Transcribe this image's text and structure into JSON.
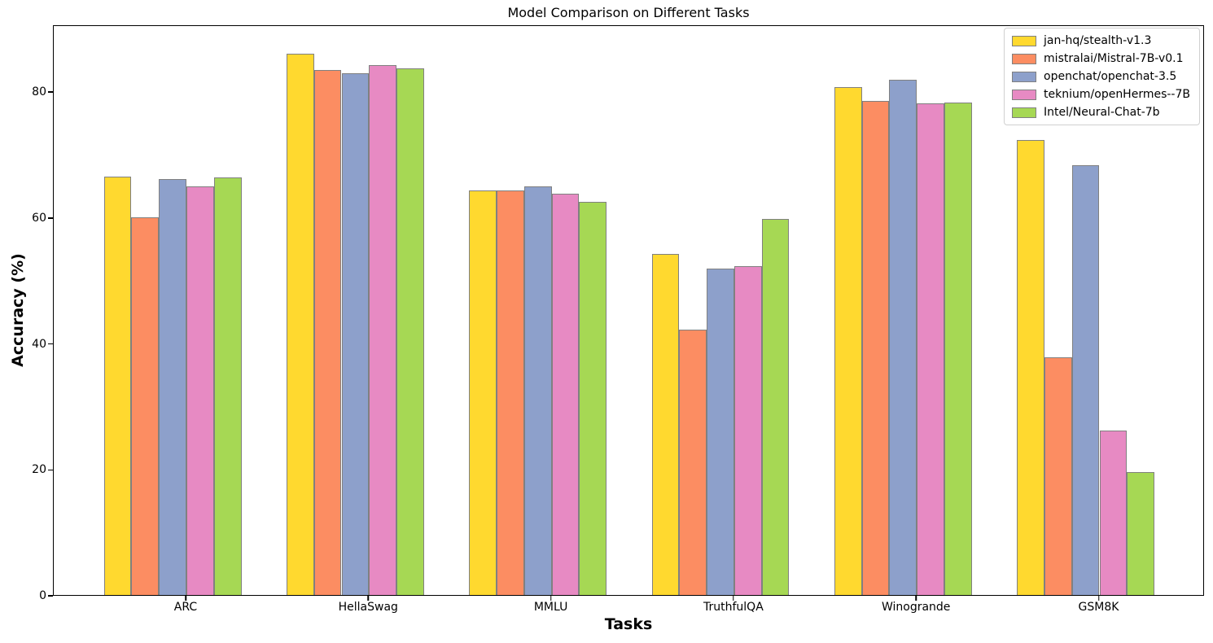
{
  "chart_data": {
    "type": "bar",
    "title": "Model Comparison on Different Tasks",
    "xlabel": "Tasks",
    "ylabel": "Accuracy (%)",
    "categories": [
      "ARC",
      "HellaSwag",
      "MMLU",
      "TruthfulQA",
      "Winogrande",
      "GSM8K"
    ],
    "series": [
      {
        "name": "jan-hq/stealth-v1.3",
        "color": "#FFD92F",
        "values": [
          66.4,
          86.0,
          64.3,
          54.2,
          80.7,
          72.2
        ]
      },
      {
        "name": "mistralai/Mistral-7B-v0.1",
        "color": "#FC8D62",
        "values": [
          60.0,
          83.3,
          64.2,
          42.1,
          78.4,
          37.8
        ]
      },
      {
        "name": "openchat/openchat-3.5",
        "color": "#8DA0CB",
        "values": [
          66.0,
          82.9,
          64.9,
          51.8,
          81.8,
          68.3
        ]
      },
      {
        "name": "teknium/openHermes--7B",
        "color": "#E78AC3",
        "values": [
          64.9,
          84.1,
          63.7,
          52.2,
          78.1,
          26.1
        ]
      },
      {
        "name": "Intel/Neural-Chat-7b",
        "color": "#A6D854",
        "values": [
          66.3,
          83.6,
          62.4,
          59.7,
          78.2,
          19.5
        ]
      }
    ],
    "yticks": [
      0,
      20,
      40,
      60,
      80
    ],
    "ylim": [
      0,
      90.6
    ],
    "bar_edge_color": "#808080",
    "legend_position": "upper right",
    "grid": false
  }
}
